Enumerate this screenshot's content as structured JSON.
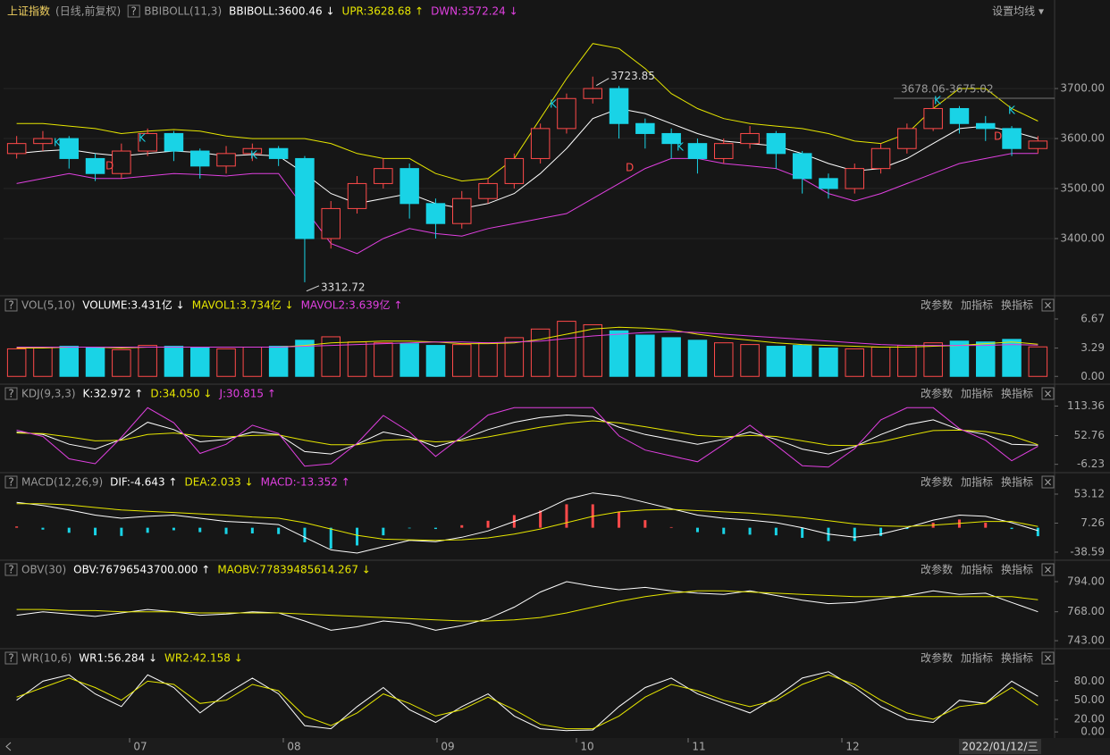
{
  "header": {
    "title": "上证指数",
    "mode": "(日线,前复权)",
    "indicator": "BBIBOLL(11,3)",
    "items": [
      {
        "text": "BBIBOLL:3600.46 ↓",
        "color": "#ffffff"
      },
      {
        "text": "UPR:3628.68 ↑",
        "color": "#e6e600"
      },
      {
        "text": "DWN:3572.24 ↓",
        "color": "#e040e0"
      }
    ],
    "settings": "设置均线 ▾"
  },
  "controls": {
    "help": "?",
    "close": "×",
    "buttons": [
      "改参数",
      "加指标",
      "换指标"
    ]
  },
  "xaxis": {
    "labels": [
      "07",
      "08",
      "09",
      "10",
      "11",
      "12"
    ],
    "date": "2022/01/12/三"
  },
  "panels": [
    {
      "kind": "candlestick",
      "ylim": [
        3291,
        3827
      ],
      "yticks": [
        {
          "value": 3700,
          "label": "3700.00"
        },
        {
          "value": 3600,
          "label": "3600.00"
        },
        {
          "value": 3500,
          "label": "3500.00"
        },
        {
          "value": 3400,
          "label": "3400.00"
        }
      ],
      "up_color": "#ff4a4a",
      "down_color": "#19d3e6",
      "open": [
        3570,
        3590,
        3600,
        3560,
        3530,
        3575,
        3610,
        3575,
        3545,
        3570,
        3580,
        3560,
        3400,
        3460,
        3510,
        3540,
        3470,
        3430,
        3480,
        3510,
        3560,
        3620,
        3680,
        3700,
        3630,
        3610,
        3590,
        3560,
        3590,
        3610,
        3570,
        3520,
        3500,
        3540,
        3580,
        3620,
        3660,
        3630,
        3620,
        3580
      ],
      "close": [
        3590,
        3600,
        3560,
        3530,
        3575,
        3610,
        3575,
        3545,
        3570,
        3580,
        3560,
        3400,
        3460,
        3510,
        3540,
        3470,
        3430,
        3480,
        3510,
        3560,
        3620,
        3680,
        3700,
        3630,
        3610,
        3590,
        3560,
        3590,
        3610,
        3570,
        3520,
        3500,
        3540,
        3580,
        3620,
        3660,
        3630,
        3620,
        3580,
        3595
      ],
      "high": [
        3605,
        3615,
        3605,
        3570,
        3590,
        3620,
        3615,
        3580,
        3585,
        3590,
        3585,
        3565,
        3475,
        3525,
        3560,
        3550,
        3480,
        3495,
        3520,
        3570,
        3630,
        3690,
        3723.85,
        3705,
        3640,
        3620,
        3600,
        3600,
        3625,
        3615,
        3575,
        3530,
        3550,
        3590,
        3630,
        3678.06,
        3665,
        3645,
        3625,
        3605
      ],
      "low": [
        3560,
        3575,
        3540,
        3515,
        3520,
        3565,
        3555,
        3520,
        3530,
        3555,
        3545,
        3312.72,
        3380,
        3450,
        3500,
        3440,
        3400,
        3420,
        3470,
        3500,
        3550,
        3610,
        3670,
        3600,
        3580,
        3560,
        3530,
        3550,
        3580,
        3540,
        3490,
        3480,
        3490,
        3530,
        3570,
        3615,
        3610,
        3595,
        3565,
        3570
      ],
      "series": [
        {
          "color": "#ffffff",
          "values": [
            3570,
            3575,
            3578,
            3570,
            3565,
            3570,
            3575,
            3572,
            3565,
            3568,
            3565,
            3530,
            3490,
            3470,
            3480,
            3490,
            3470,
            3460,
            3470,
            3490,
            3530,
            3580,
            3640,
            3660,
            3650,
            3630,
            3610,
            3595,
            3590,
            3585,
            3570,
            3550,
            3535,
            3540,
            3560,
            3590,
            3620,
            3625,
            3615,
            3600
          ]
        },
        {
          "color": "#e6e600",
          "values": [
            3630,
            3630,
            3625,
            3620,
            3610,
            3615,
            3618,
            3615,
            3605,
            3600,
            3600,
            3600,
            3590,
            3570,
            3560,
            3560,
            3530,
            3515,
            3520,
            3560,
            3640,
            3720,
            3790,
            3780,
            3740,
            3690,
            3660,
            3640,
            3630,
            3625,
            3620,
            3610,
            3595,
            3590,
            3610,
            3660,
            3700,
            3700,
            3660,
            3635
          ]
        },
        {
          "color": "#e040e0",
          "values": [
            3510,
            3520,
            3530,
            3520,
            3520,
            3525,
            3530,
            3528,
            3525,
            3530,
            3530,
            3460,
            3390,
            3370,
            3400,
            3420,
            3410,
            3405,
            3420,
            3430,
            3440,
            3450,
            3480,
            3510,
            3540,
            3560,
            3560,
            3550,
            3545,
            3540,
            3520,
            3490,
            3475,
            3490,
            3510,
            3530,
            3550,
            3560,
            3570,
            3570
          ]
        }
      ],
      "range_label": "3678.06-3675.02",
      "signals": [
        {
          "text": "K",
          "color": "#19d3e6"
        },
        {
          "text": "D",
          "color": "#ff4a4a"
        },
        {
          "text": "K",
          "color": "#19d3e6"
        },
        {
          "text": "K",
          "color": "#19d3e6"
        },
        {
          "text": "K",
          "color": "#19d3e6"
        },
        {
          "text": "D",
          "color": "#ff4a4a"
        },
        {
          "text": "K",
          "color": "#19d3e6"
        },
        {
          "text": "K",
          "color": "#19d3e6"
        },
        {
          "text": "D",
          "color": "#ff4a4a"
        },
        {
          "text": "K",
          "color": "#19d3e6"
        }
      ]
    },
    {
      "kind": "volume",
      "header": [
        {
          "text": "VOL(5,10)",
          "color": "#999999"
        },
        {
          "text": "VOLUME:3.431亿 ↓",
          "color": "#ffffff"
        },
        {
          "text": "MAVOL1:3.734亿 ↓",
          "color": "#e6e600"
        },
        {
          "text": "MAVOL2:3.639亿 ↑",
          "color": "#e040e0"
        }
      ],
      "ylim": [
        -0.7,
        7.5
      ],
      "yticks": [
        6.67,
        3.29,
        {
          "value": 0,
          "label": "0.00"
        }
      ],
      "bars": [
        3.2,
        3.4,
        3.5,
        3.3,
        3.1,
        3.6,
        3.5,
        3.3,
        3.2,
        3.4,
        3.5,
        4.2,
        4.6,
        4.0,
        3.9,
        3.8,
        3.6,
        3.7,
        3.9,
        4.5,
        5.5,
        6.4,
        6.0,
        5.3,
        4.8,
        4.5,
        4.2,
        3.9,
        3.7,
        3.5,
        3.6,
        3.3,
        3.2,
        3.4,
        3.6,
        3.9,
        4.1,
        4.0,
        4.3,
        3.431
      ],
      "series": [
        {
          "color": "#e6e600",
          "values": [
            3.3,
            3.3,
            3.4,
            3.4,
            3.3,
            3.4,
            3.4,
            3.4,
            3.4,
            3.4,
            3.4,
            3.6,
            3.9,
            4.0,
            4.1,
            4.1,
            4.0,
            3.8,
            3.8,
            3.9,
            4.3,
            4.9,
            5.5,
            5.7,
            5.6,
            5.4,
            4.9,
            4.5,
            4.2,
            3.9,
            3.7,
            3.6,
            3.5,
            3.4,
            3.4,
            3.5,
            3.6,
            3.8,
            4.0,
            3.734
          ]
        },
        {
          "color": "#e040e0",
          "values": [
            3.4,
            3.4,
            3.4,
            3.4,
            3.4,
            3.4,
            3.4,
            3.4,
            3.4,
            3.4,
            3.4,
            3.5,
            3.6,
            3.7,
            3.8,
            3.9,
            4.0,
            4.0,
            3.9,
            4.0,
            4.1,
            4.4,
            4.7,
            4.9,
            5.1,
            5.2,
            5.1,
            4.9,
            4.7,
            4.5,
            4.3,
            4.1,
            3.9,
            3.7,
            3.6,
            3.6,
            3.6,
            3.6,
            3.7,
            3.639
          ]
        }
      ]
    },
    {
      "kind": "lines",
      "header": [
        {
          "text": "KDJ(9,3,3)",
          "color": "#999999"
        },
        {
          "text": "K:32.972 ↑",
          "color": "#ffffff"
        },
        {
          "text": "D:34.050 ↓",
          "color": "#e6e600"
        },
        {
          "text": "J:30.815 ↑",
          "color": "#e040e0"
        }
      ],
      "ylim": [
        -19.7,
        125.2
      ],
      "yticks": [
        113.36,
        52.76,
        -6.23
      ],
      "series": [
        {
          "color": "#ffffff",
          "values": [
            60,
            55,
            35,
            25,
            45,
            80,
            65,
            40,
            45,
            60,
            55,
            20,
            15,
            35,
            60,
            50,
            30,
            45,
            65,
            80,
            90,
            95,
            92,
            70,
            55,
            45,
            35,
            45,
            60,
            45,
            25,
            15,
            30,
            55,
            75,
            85,
            65,
            55,
            35,
            32.972
          ]
        },
        {
          "color": "#e6e600",
          "values": [
            58,
            57,
            50,
            42,
            43,
            55,
            58,
            52,
            50,
            53,
            54,
            43,
            34,
            34,
            43,
            45,
            40,
            42,
            50,
            60,
            70,
            78,
            83,
            79,
            71,
            62,
            53,
            50,
            53,
            51,
            42,
            33,
            32,
            40,
            52,
            63,
            64,
            61,
            52,
            34.05
          ]
        },
        {
          "color": "#e040e0",
          "values": [
            64,
            51,
            5,
            -5,
            49,
            110,
            79,
            16,
            35,
            74,
            57,
            -10,
            -5,
            37,
            94,
            60,
            10,
            51,
            95,
            110,
            110,
            110,
            110,
            52,
            23,
            11,
            -1,
            35,
            74,
            33,
            -9,
            -12,
            26,
            85,
            110,
            110,
            67,
            43,
            1,
            30.815
          ]
        }
      ]
    },
    {
      "kind": "macd",
      "header": [
        {
          "text": "MACD(12,26,9)",
          "color": "#999999"
        },
        {
          "text": "DIF:-4.643 ↑",
          "color": "#ffffff"
        },
        {
          "text": "DEA:2.033 ↓",
          "color": "#e6e600"
        },
        {
          "text": "MACD:-13.352 ↑",
          "color": "#e040e0"
        }
      ],
      "ylim": [
        -48.5,
        61.6
      ],
      "yticks": [
        53.12,
        7.26,
        -38.59
      ],
      "up_color": "#ff4a4a",
      "down_color": "#19d3e6",
      "bars": [
        2,
        -3,
        -8,
        -12,
        -13,
        -8,
        -4,
        -7,
        -10,
        -9,
        -10,
        -23,
        -33,
        -28,
        -12,
        -1,
        -2,
        4,
        11,
        20,
        27,
        37,
        37,
        25,
        12,
        1,
        -7,
        -10,
        -11,
        -12,
        -16,
        -21,
        -21,
        -13,
        -2,
        8,
        13,
        8,
        -2,
        -13.352
      ],
      "series": [
        {
          "color": "#ffffff",
          "values": [
            40,
            35,
            28,
            20,
            15,
            18,
            20,
            15,
            10,
            8,
            5,
            -15,
            -35,
            -40,
            -30,
            -20,
            -22,
            -15,
            -5,
            10,
            25,
            45,
            55,
            50,
            40,
            30,
            20,
            15,
            12,
            8,
            0,
            -10,
            -15,
            -10,
            0,
            12,
            20,
            18,
            8,
            -4.643
          ]
        },
        {
          "color": "#e6e600",
          "values": [
            38,
            38,
            36,
            32,
            28,
            26,
            24,
            22,
            20,
            17,
            15,
            8,
            -2,
            -12,
            -18,
            -19,
            -20,
            -19,
            -16,
            -10,
            -2,
            8,
            18,
            25,
            28,
            29,
            27,
            25,
            23,
            20,
            16,
            11,
            6,
            3,
            2,
            4,
            7,
            10,
            10,
            2.033
          ]
        }
      ]
    },
    {
      "kind": "lines",
      "header": [
        {
          "text": "OBV(30)",
          "color": "#999999"
        },
        {
          "text": "OBV:76796543700.000 ↑",
          "color": "#ffffff"
        },
        {
          "text": "MAOBV:77839485614.267 ↓",
          "color": "#e6e600"
        }
      ],
      "ylim": [
        739.2,
        798.6
      ],
      "yticks": [
        {
          "value": 794,
          "label": "794.00"
        },
        {
          "value": 768,
          "label": "768.00"
        },
        {
          "value": 743,
          "label": "743.00"
        }
      ],
      "series": [
        {
          "color": "#ffffff",
          "values": [
            765,
            768,
            766,
            764,
            767,
            770,
            768,
            765,
            766,
            768,
            767,
            760,
            752,
            755,
            760,
            758,
            752,
            756,
            762,
            772,
            785,
            794,
            790,
            787,
            789,
            786,
            784,
            783,
            786,
            782,
            778,
            775,
            776,
            779,
            782,
            786,
            783,
            784,
            776,
            767.965437
          ]
        },
        {
          "color": "#e6e600",
          "values": [
            770,
            770,
            769,
            769,
            768,
            768,
            768,
            767,
            767,
            767,
            767,
            766,
            765,
            764,
            763,
            762,
            761,
            760,
            760,
            761,
            763,
            767,
            772,
            777,
            781,
            784,
            786,
            786,
            785,
            784,
            783,
            782,
            781,
            781,
            781,
            781,
            781,
            781,
            781,
            778.394856
          ]
        }
      ]
    },
    {
      "kind": "lines",
      "header": [
        {
          "text": "WR(10,6)",
          "color": "#999999"
        },
        {
          "text": "WR1:56.284 ↓",
          "color": "#ffffff"
        },
        {
          "text": "WR2:42.158 ↓",
          "color": "#e6e600"
        }
      ],
      "ylim": [
        -4,
        106
      ],
      "yticks": [
        {
          "value": 80,
          "label": "80.00"
        },
        {
          "value": 50,
          "label": "50.00"
        },
        {
          "value": 20,
          "label": "20.00"
        },
        {
          "value": 0,
          "label": "0.00"
        }
      ],
      "series": [
        {
          "color": "#ffffff",
          "values": [
            50,
            80,
            90,
            60,
            40,
            90,
            70,
            30,
            60,
            85,
            60,
            10,
            5,
            40,
            70,
            35,
            15,
            40,
            60,
            25,
            5,
            2,
            3,
            40,
            70,
            85,
            60,
            45,
            30,
            55,
            85,
            95,
            70,
            40,
            20,
            15,
            50,
            45,
            80,
            56.284
          ]
        },
        {
          "color": "#e6e600",
          "values": [
            55,
            70,
            85,
            70,
            50,
            80,
            75,
            45,
            50,
            75,
            65,
            25,
            10,
            30,
            60,
            45,
            25,
            35,
            55,
            35,
            12,
            5,
            5,
            25,
            55,
            75,
            65,
            50,
            40,
            50,
            75,
            90,
            75,
            50,
            30,
            20,
            40,
            45,
            70,
            42.158
          ]
        }
      ]
    }
  ]
}
